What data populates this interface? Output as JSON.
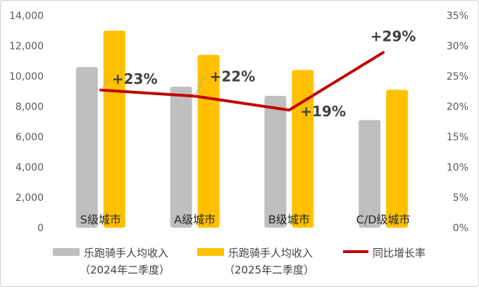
{
  "chart_data": {
    "type": "bar",
    "categories": [
      "S级城市",
      "A级城市",
      "B级城市",
      "C/D级城市"
    ],
    "series": [
      {
        "name": "乐跑骑手人均收入（2024年二季度）",
        "values": [
          10600,
          9300,
          8700,
          7100
        ],
        "color": "#bfbfbf",
        "axis": "left"
      },
      {
        "name": "乐跑骑手人均收入（2025年二季度）",
        "values": [
          13000,
          11400,
          10400,
          9100
        ],
        "color": "#ffc000",
        "axis": "left"
      }
    ],
    "line_series": {
      "name": "同比增长率",
      "values": [
        22.7,
        21.7,
        19.4,
        28.9
      ],
      "labels": [
        "+23%",
        "+22%",
        "+19%",
        "+29%"
      ],
      "color": "#c00000",
      "axis": "right"
    },
    "y_left": {
      "min": 0,
      "max": 14000,
      "ticks": [
        "0",
        "2,000",
        "4,000",
        "6,000",
        "8,000",
        "10,000",
        "12,000",
        "14,000"
      ]
    },
    "y_right": {
      "min": 0,
      "max": 35,
      "ticks": [
        "0%",
        "5%",
        "10%",
        "15%",
        "20%",
        "25%",
        "30%",
        "35%"
      ]
    },
    "legend": [
      {
        "line1": "乐跑骑手人均收入",
        "line2": "（2024年二季度）",
        "color": "#bfbfbf",
        "kind": "bar"
      },
      {
        "line1": "乐跑骑手人均收入",
        "line2": "（2025年二季度）",
        "color": "#ffc000",
        "kind": "bar"
      },
      {
        "line1": "同比增长率",
        "line2": "",
        "color": "#c00000",
        "kind": "line"
      }
    ],
    "legend_position": "bottom",
    "grid": false
  }
}
